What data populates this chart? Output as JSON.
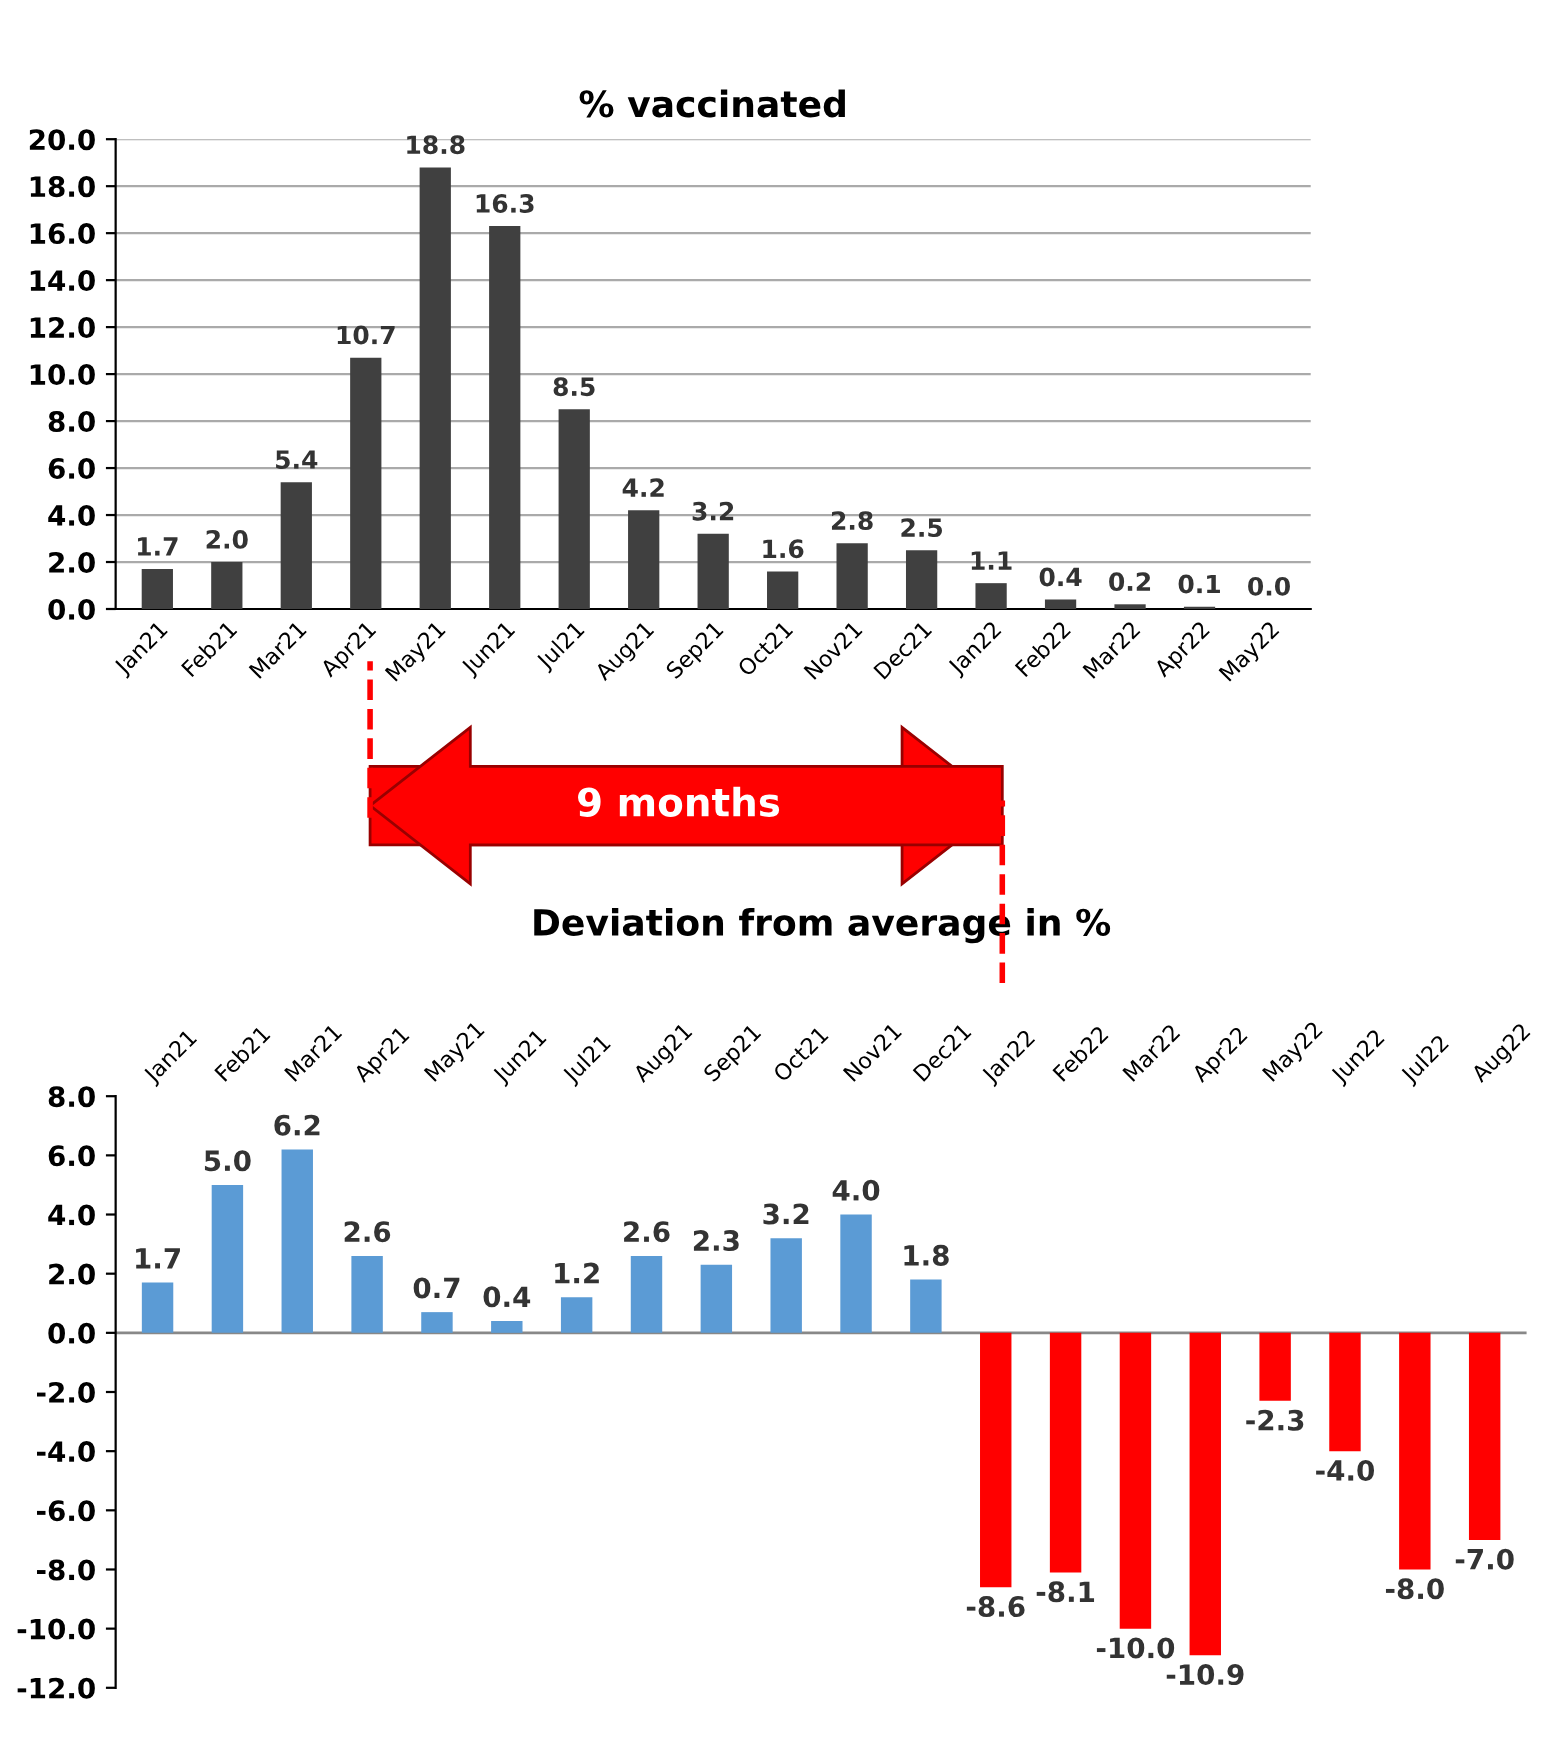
{
  "chart_data": [
    {
      "type": "bar",
      "title": "% vaccinated",
      "categories": [
        "Jan21",
        "Feb21",
        "Mar21",
        "Apr21",
        "May21",
        "Jun21",
        "Jul21",
        "Aug21",
        "Sep21",
        "Oct21",
        "Nov21",
        "Dec21",
        "Jan22",
        "Feb22",
        "Mar22",
        "Apr22",
        "May22"
      ],
      "values": [
        1.7,
        2.0,
        5.4,
        10.7,
        18.8,
        16.3,
        8.5,
        4.2,
        3.2,
        1.6,
        2.8,
        2.5,
        1.1,
        0.4,
        0.2,
        0.1,
        0.0
      ],
      "color": "#404040",
      "ylim": [
        0,
        20
      ],
      "yticks": [
        {
          "value": 0,
          "label": "0.0"
        },
        {
          "value": 2,
          "label": "2.0"
        },
        {
          "value": 4,
          "label": "4.0"
        },
        {
          "value": 6,
          "label": "6.0"
        },
        {
          "value": 8,
          "label": "8.0"
        },
        {
          "value": 10,
          "label": "10.0"
        },
        {
          "value": 12,
          "label": "12.0"
        },
        {
          "value": 14,
          "label": "14.0"
        },
        {
          "value": 16,
          "label": "16.0"
        },
        {
          "value": 18,
          "label": "18.0"
        },
        {
          "value": 20,
          "label": "20.0"
        }
      ],
      "grid": "y",
      "value_labels": [
        "1.7",
        "2.0",
        "5.4",
        "10.7",
        "18.8",
        "16.3",
        "8.5",
        "4.2",
        "3.2",
        "1.6",
        "2.8",
        "2.5",
        "1.1",
        "0.4",
        "0.2",
        "0.1",
        "0.0"
      ],
      "annotations": [
        "9 months"
      ]
    },
    {
      "type": "bar",
      "title": "Deviation from average in %",
      "categories": [
        "Jan21",
        "Feb21",
        "Mar21",
        "Apr21",
        "May21",
        "Jun21",
        "Jul21",
        "Aug21",
        "Sep21",
        "Oct21",
        "Nov21",
        "Dec21",
        "Jan22",
        "Feb22",
        "Mar22",
        "Apr22",
        "May22",
        "Jun22",
        "Jul22",
        "Aug22"
      ],
      "values": [
        1.7,
        5.0,
        6.2,
        2.6,
        0.7,
        0.4,
        1.2,
        2.6,
        2.3,
        3.2,
        4.0,
        1.8,
        -8.6,
        -8.1,
        -10.0,
        -10.9,
        -2.3,
        -4.0,
        -8.0,
        -7.0
      ],
      "colors": [
        "#5b9bd5",
        "#5b9bd5",
        "#5b9bd5",
        "#5b9bd5",
        "#5b9bd5",
        "#5b9bd5",
        "#5b9bd5",
        "#5b9bd5",
        "#5b9bd5",
        "#5b9bd5",
        "#5b9bd5",
        "#5b9bd5",
        "#ff0000",
        "#ff0000",
        "#ff0000",
        "#ff0000",
        "#ff0000",
        "#ff0000",
        "#ff0000",
        "#ff0000"
      ],
      "ylim": [
        -12,
        8
      ],
      "yticks": [
        {
          "value": -12,
          "label": "-12.0"
        },
        {
          "value": -10,
          "label": "-10.0"
        },
        {
          "value": -8,
          "label": "-8.0"
        },
        {
          "value": -6,
          "label": "-6.0"
        },
        {
          "value": -4,
          "label": "-4.0"
        },
        {
          "value": -2,
          "label": "-2.0"
        },
        {
          "value": 0,
          "label": "0.0"
        },
        {
          "value": 2,
          "label": "2.0"
        },
        {
          "value": 4,
          "label": "4.0"
        },
        {
          "value": 6,
          "label": "6.0"
        },
        {
          "value": 8,
          "label": "8.0"
        }
      ],
      "grid": false,
      "ref_lines": [
        {
          "axis": "y",
          "value": 0,
          "color": "#888888"
        }
      ],
      "value_labels": [
        "1.7",
        "5.0",
        "6.2",
        "2.6",
        "0.7",
        "0.4",
        "1.2",
        "2.6",
        "2.3",
        "3.2",
        "4.0",
        "1.8",
        "-8.6",
        "-8.1",
        "-10.0",
        "-10.9",
        "-2.3",
        "-4.0",
        "-8.0",
        "-7.0"
      ]
    }
  ]
}
